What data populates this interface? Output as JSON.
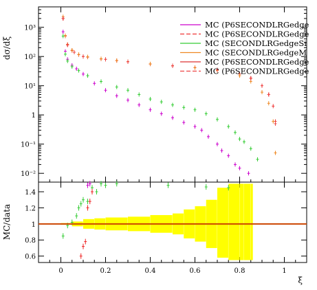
{
  "chart_data": {
    "type": "scatter",
    "title": "",
    "top_panel": {
      "ylabel": "dσ/dξ",
      "yscale": "log",
      "ylim": [
        0.005,
        5000
      ],
      "yticks": [
        {
          "v": 1000,
          "label": "10³"
        },
        {
          "v": 100,
          "label": "10²"
        },
        {
          "v": 10,
          "label": "10¹"
        },
        {
          "v": 1,
          "label": "1"
        },
        {
          "v": 0.1,
          "label": "10⁻¹"
        },
        {
          "v": 0.01,
          "label": "10⁻²"
        }
      ]
    },
    "ratio_panel": {
      "ylabel": "MC/data",
      "ylim": [
        0.52,
        1.52
      ],
      "yticks": [
        {
          "v": 1.4,
          "label": "1.4"
        },
        {
          "v": 1.2,
          "label": "1.2"
        },
        {
          "v": 1.0,
          "label": "1"
        },
        {
          "v": 0.8,
          "label": "0.8"
        },
        {
          "v": 0.6,
          "label": "0.6"
        }
      ]
    },
    "xlabel": "ξ",
    "xlim": [
      -0.1,
      1.1
    ],
    "xticks": [
      {
        "v": 0,
        "label": "0"
      },
      {
        "v": 0.2,
        "label": "0.2"
      },
      {
        "v": 0.4,
        "label": "0.4"
      },
      {
        "v": 0.6,
        "label": "0.6"
      },
      {
        "v": 0.8,
        "label": "0.8"
      },
      {
        "v": 1.0,
        "label": "1"
      }
    ],
    "legend_position": "top-right",
    "series": [
      {
        "name": "MC (P6SECONDLRGedge",
        "color": "#cc00cc",
        "dash": false,
        "points": [
          [
            0.01,
            700
          ],
          [
            0.02,
            150
          ],
          [
            0.03,
            80
          ],
          [
            0.05,
            50
          ],
          [
            0.07,
            38
          ],
          [
            0.1,
            25
          ],
          [
            0.15,
            12
          ],
          [
            0.2,
            7
          ],
          [
            0.25,
            4.5
          ],
          [
            0.3,
            3.2
          ],
          [
            0.35,
            2.2
          ],
          [
            0.4,
            1.5
          ],
          [
            0.45,
            1.1
          ],
          [
            0.5,
            0.8
          ],
          [
            0.55,
            0.55
          ],
          [
            0.6,
            0.4
          ],
          [
            0.63,
            0.3
          ],
          [
            0.66,
            0.18
          ],
          [
            0.7,
            0.1
          ],
          [
            0.72,
            0.06
          ],
          [
            0.75,
            0.04
          ],
          [
            0.78,
            0.02
          ],
          [
            0.8,
            0.015
          ],
          [
            0.84,
            0.01
          ]
        ]
      },
      {
        "name": "MC (P6SECONDLRGedge",
        "color": "#ee3333",
        "dash": true,
        "points": [
          [
            0.01,
            2000
          ],
          [
            0.02,
            500
          ],
          [
            0.03,
            250
          ],
          [
            0.05,
            160
          ],
          [
            0.08,
            115
          ],
          [
            0.12,
            95
          ],
          [
            0.18,
            82
          ],
          [
            0.25,
            72
          ],
          [
            0.3,
            66
          ],
          [
            0.4,
            55
          ],
          [
            0.5,
            48
          ],
          [
            0.6,
            42
          ],
          [
            0.7,
            35
          ],
          [
            0.8,
            25
          ],
          [
            0.85,
            18
          ],
          [
            0.9,
            10
          ],
          [
            0.93,
            5
          ],
          [
            0.95,
            2
          ],
          [
            0.96,
            0.6
          ]
        ]
      },
      {
        "name": "MC (SECONDLRGedgeSi",
        "color": "#33cc33",
        "dash": false,
        "points": [
          [
            0.01,
            500
          ],
          [
            0.02,
            120
          ],
          [
            0.03,
            70
          ],
          [
            0.05,
            45
          ],
          [
            0.08,
            33
          ],
          [
            0.12,
            22
          ],
          [
            0.18,
            14
          ],
          [
            0.25,
            9
          ],
          [
            0.3,
            7
          ],
          [
            0.35,
            5
          ],
          [
            0.4,
            3.5
          ],
          [
            0.45,
            2.8
          ],
          [
            0.5,
            2.2
          ],
          [
            0.55,
            1.8
          ],
          [
            0.6,
            1.5
          ],
          [
            0.65,
            1.1
          ],
          [
            0.7,
            0.7
          ],
          [
            0.75,
            0.4
          ],
          [
            0.78,
            0.25
          ],
          [
            0.8,
            0.15
          ],
          [
            0.82,
            0.12
          ],
          [
            0.85,
            0.07
          ],
          [
            0.88,
            0.03
          ]
        ]
      },
      {
        "name": "MC (SECONDLRGedgeM",
        "color": "#ee8822",
        "dash": false,
        "points": [
          [
            0.01,
            2300
          ],
          [
            0.02,
            520
          ],
          [
            0.03,
            260
          ],
          [
            0.05,
            165
          ],
          [
            0.08,
            118
          ],
          [
            0.12,
            98
          ],
          [
            0.18,
            84
          ],
          [
            0.25,
            73
          ],
          [
            0.3,
            67
          ],
          [
            0.4,
            56
          ],
          [
            0.5,
            48
          ],
          [
            0.6,
            41
          ],
          [
            0.7,
            33
          ],
          [
            0.8,
            22
          ],
          [
            0.85,
            14
          ],
          [
            0.9,
            6
          ],
          [
            0.93,
            2.5
          ],
          [
            0.95,
            0.6
          ],
          [
            0.96,
            0.05
          ]
        ]
      },
      {
        "name": "MC (P6SECONDLRGedge",
        "color": "#dd3333",
        "dash": false,
        "points": [
          [
            0.01,
            2000
          ],
          [
            0.03,
            250
          ],
          [
            0.06,
            140
          ],
          [
            0.1,
            100
          ],
          [
            0.2,
            80
          ],
          [
            0.3,
            66
          ],
          [
            0.5,
            48
          ],
          [
            0.7,
            35
          ],
          [
            0.85,
            18
          ],
          [
            0.93,
            5
          ],
          [
            0.96,
            0.5
          ]
        ]
      },
      {
        "name": "MC (P6SECONDLRGedge",
        "color": "#ee4444",
        "dash": true,
        "points": [
          [
            0.01,
            2000
          ],
          [
            0.03,
            250
          ],
          [
            0.06,
            140
          ],
          [
            0.1,
            100
          ],
          [
            0.2,
            80
          ],
          [
            0.3,
            66
          ],
          [
            0.5,
            48
          ],
          [
            0.7,
            35
          ],
          [
            0.85,
            18
          ],
          [
            0.93,
            5
          ],
          [
            0.96,
            0.5
          ]
        ]
      }
    ],
    "ratio_points": {
      "green": [
        [
          0.01,
          0.85
        ],
        [
          0.03,
          0.98
        ],
        [
          0.05,
          1.02
        ],
        [
          0.07,
          1.1
        ],
        [
          0.08,
          1.2
        ],
        [
          0.09,
          1.25
        ],
        [
          0.1,
          1.3
        ],
        [
          0.12,
          1.28
        ],
        [
          0.14,
          1.45
        ],
        [
          0.16,
          1.4
        ],
        [
          0.18,
          1.5
        ],
        [
          0.2,
          1.48
        ],
        [
          0.25,
          1.5
        ],
        [
          0.48,
          1.48
        ],
        [
          0.65,
          1.46
        ],
        [
          0.75,
          1.45
        ]
      ],
      "red": [
        [
          0.09,
          0.6
        ],
        [
          0.1,
          0.72
        ],
        [
          0.11,
          0.78
        ],
        [
          0.12,
          1.2
        ],
        [
          0.13,
          1.28
        ],
        [
          0.14,
          1.4
        ]
      ],
      "magenta": [
        [
          0.12,
          1.48
        ],
        [
          0.13,
          1.5
        ]
      ],
      "band_points": [
        [
          0.0,
          0.99,
          1.01
        ],
        [
          0.05,
          0.97,
          1.03
        ],
        [
          0.1,
          0.94,
          1.06
        ],
        [
          0.15,
          0.93,
          1.07
        ],
        [
          0.2,
          0.92,
          1.08
        ],
        [
          0.3,
          0.91,
          1.09
        ],
        [
          0.4,
          0.89,
          1.11
        ],
        [
          0.5,
          0.87,
          1.13
        ],
        [
          0.55,
          0.82,
          1.18
        ],
        [
          0.6,
          0.78,
          1.22
        ],
        [
          0.65,
          0.7,
          1.3
        ],
        [
          0.7,
          0.58,
          1.45
        ],
        [
          0.75,
          0.55,
          1.5
        ],
        [
          0.8,
          0.55,
          1.5
        ],
        [
          0.82,
          0.55,
          1.5
        ],
        [
          0.85,
          0.55,
          1.5
        ],
        [
          0.86,
          0.55,
          1.5
        ]
      ]
    }
  }
}
